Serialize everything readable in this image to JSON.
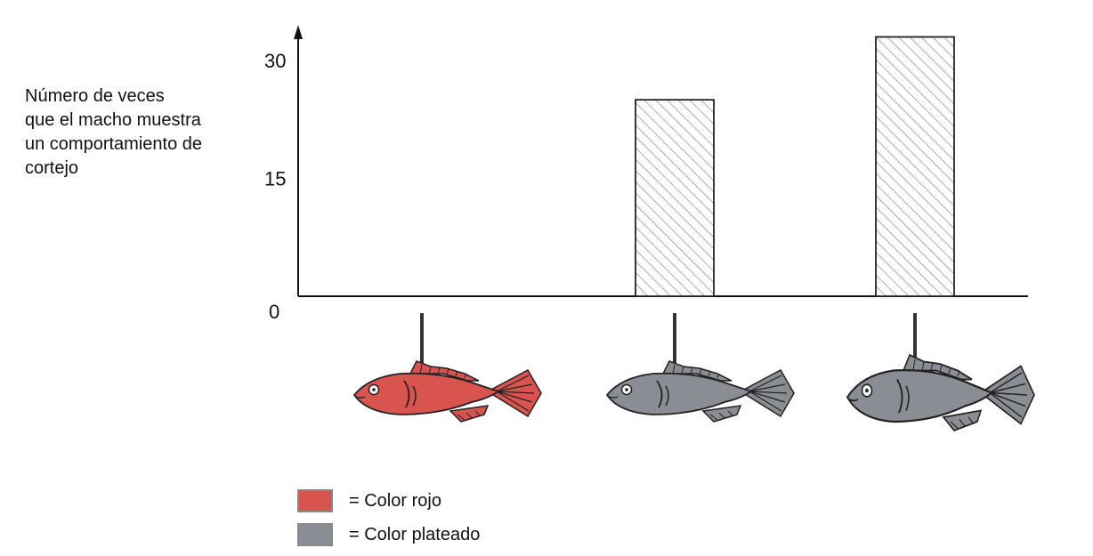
{
  "chart_data": {
    "type": "bar",
    "ylabel_lines": [
      "Número de veces",
      "que el macho muestra",
      "un comportamiento de",
      "cortejo"
    ],
    "yticks": [
      0,
      15,
      30
    ],
    "ylim": [
      0,
      36
    ],
    "categories": [
      "Pez rojo",
      "Pez plateado",
      "Pez plateado de vientre abultado"
    ],
    "category_colors": [
      "#d9534f",
      "#8a8d93",
      "#8a8d93"
    ],
    "values": [
      0,
      25,
      33
    ],
    "bar_fill": "hatched",
    "grid": false
  },
  "legend": [
    {
      "label": "= Color rojo",
      "color": "#d9534f"
    },
    {
      "label": "= Color plateado",
      "color": "#8a8d93"
    }
  ]
}
